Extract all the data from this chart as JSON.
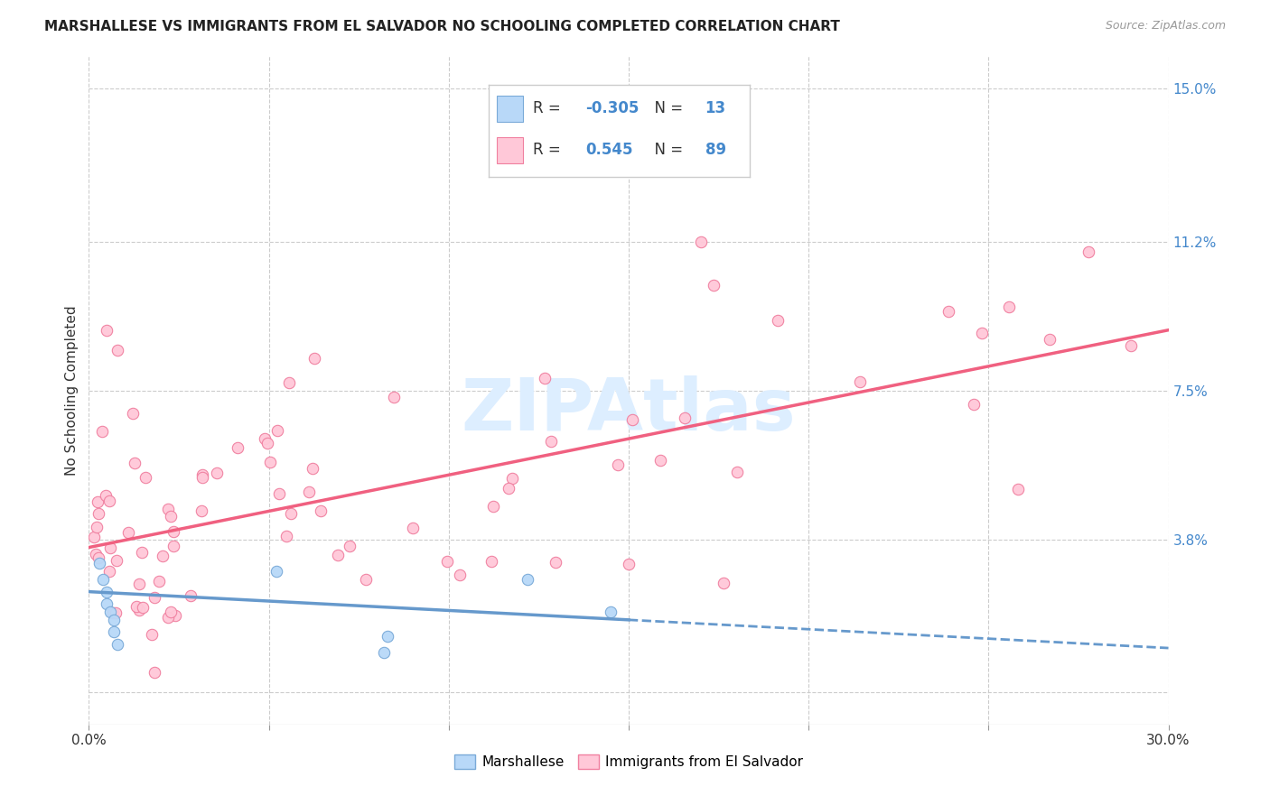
{
  "title": "MARSHALLESE VS IMMIGRANTS FROM EL SALVADOR NO SCHOOLING COMPLETED CORRELATION CHART",
  "source": "Source: ZipAtlas.com",
  "ylabel_label": "No Schooling Completed",
  "right_ytick_vals": [
    0.038,
    0.075,
    0.112,
    0.15
  ],
  "right_ytick_labels": [
    "3.8%",
    "7.5%",
    "11.2%",
    "15.0%"
  ],
  "xmin": 0.0,
  "xmax": 0.3,
  "ymin": -0.008,
  "ymax": 0.158,
  "legend_R1": "-0.305",
  "legend_N1": "13",
  "legend_R2": "0.545",
  "legend_N2": "89",
  "color_marshallese_fill": "#b8d8f8",
  "color_marshallese_edge": "#7aaad8",
  "color_el_salvador_fill": "#ffc8d8",
  "color_el_salvador_edge": "#f080a0",
  "color_line_marshallese": "#6699cc",
  "color_line_el_salvador": "#f06080",
  "background_color": "#ffffff",
  "grid_color": "#cccccc",
  "watermark_color": "#ddeeff"
}
